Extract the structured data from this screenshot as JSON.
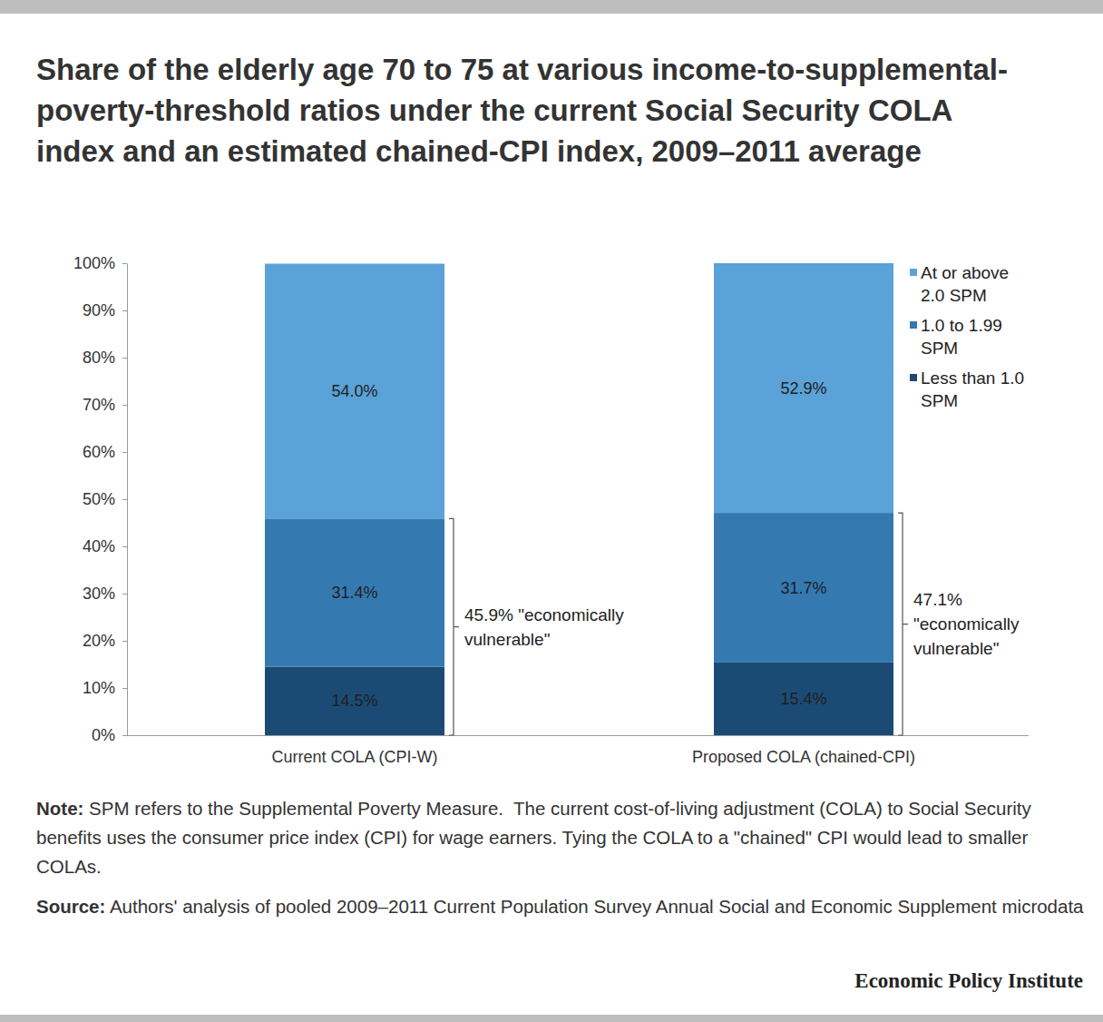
{
  "chart_data": {
    "type": "bar",
    "stacked": true,
    "title": "Share of the elderly age 70 to 75 at various income-to-supplemental-poverty-threshold ratios under the current Social Security COLA index and an estimated chained-CPI index, 2009–2011 average",
    "categories": [
      "Current COLA (CPI-W)",
      "Proposed COLA (chained-CPI)"
    ],
    "series": [
      {
        "name": "Less than 1.0 SPM",
        "color": "#1b4b75",
        "values": [
          14.5,
          15.4
        ],
        "value_labels": [
          "14.5%",
          "15.4%"
        ]
      },
      {
        "name": "1.0 to 1.99 SPM",
        "color": "#3579b1",
        "values": [
          31.4,
          31.7
        ],
        "value_labels": [
          "31.4%",
          "31.7%"
        ]
      },
      {
        "name": "At or above 2.0 SPM",
        "color": "#5aa2d7",
        "values": [
          54.0,
          52.9
        ],
        "value_labels": [
          "54.0%",
          "52.9%"
        ]
      }
    ],
    "ylim": [
      0,
      100
    ],
    "yticks": [
      {
        "value": 0,
        "label": "0%"
      },
      {
        "value": 10,
        "label": "10%"
      },
      {
        "value": 20,
        "label": "20%"
      },
      {
        "value": 30,
        "label": "30%"
      },
      {
        "value": 40,
        "label": "40%"
      },
      {
        "value": 50,
        "label": "50%"
      },
      {
        "value": 60,
        "label": "60%"
      },
      {
        "value": 70,
        "label": "70%"
      },
      {
        "value": 80,
        "label": "80%"
      },
      {
        "value": 90,
        "label": "90%"
      },
      {
        "value": 100,
        "label": "100%"
      }
    ],
    "grid": false,
    "data_labels": true,
    "legend": "top-right",
    "annotations": [
      {
        "value": 45.9,
        "text": [
          "45.9% \"economically",
          "vulnerable\""
        ]
      },
      {
        "value": 47.1,
        "text": [
          "47.1%",
          "\"economically",
          "vulnerable\""
        ]
      }
    ]
  },
  "note": {
    "label": "Note:",
    "text": "SPM refers to the Supplemental Poverty Measure.  The current cost-of-living adjustment (COLA) to Social Security benefits uses the consumer price index (CPI) for wage earners. Tying the COLA to a \"chained\" CPI would lead to smaller COLAs."
  },
  "source": {
    "label": "Source:",
    "text": "Authors' analysis of pooled 2009–2011 Current Population Survey Annual Social and Economic Supplement microdata"
  },
  "publisher": "Economic Policy Institute"
}
